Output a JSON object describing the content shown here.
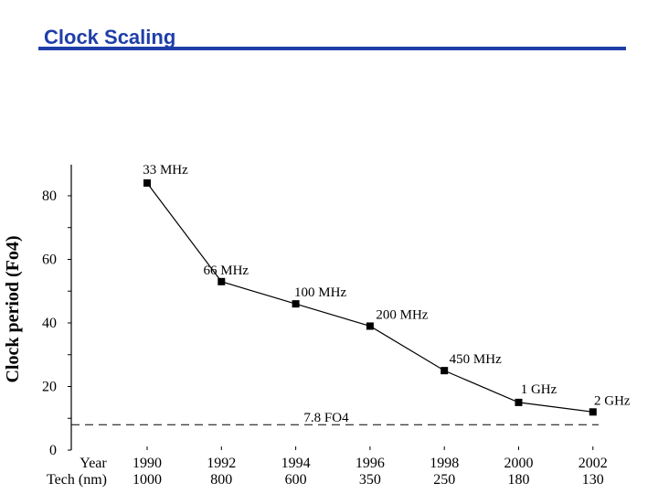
{
  "slide": {
    "title": "Clock Scaling"
  },
  "chart_data": {
    "type": "line",
    "title": "",
    "ylabel": "Clock period (Fo4)",
    "ylim": [
      0,
      90
    ],
    "yticks": [
      0,
      20,
      40,
      60,
      80
    ],
    "x_row_labels": {
      "year": "Year",
      "tech": "Tech (nm)"
    },
    "x": [
      1990,
      1992,
      1994,
      1996,
      1998,
      2000,
      2002
    ],
    "tech": [
      "1000",
      "800",
      "600",
      "350",
      "250",
      "180",
      "130"
    ],
    "series": [
      {
        "name": "Clock period",
        "values": [
          84,
          53,
          46,
          39,
          25,
          15,
          12
        ]
      }
    ],
    "point_labels": [
      "33 MHz",
      "66 MHz",
      "100 MHz",
      "200 MHz",
      "450 MHz",
      "1 GHz",
      "2 GHz"
    ],
    "reference_line": {
      "value": 8,
      "label": "7.8 FO4"
    },
    "colors": {
      "title": "#1f3ea8",
      "ink": "#000000"
    }
  }
}
